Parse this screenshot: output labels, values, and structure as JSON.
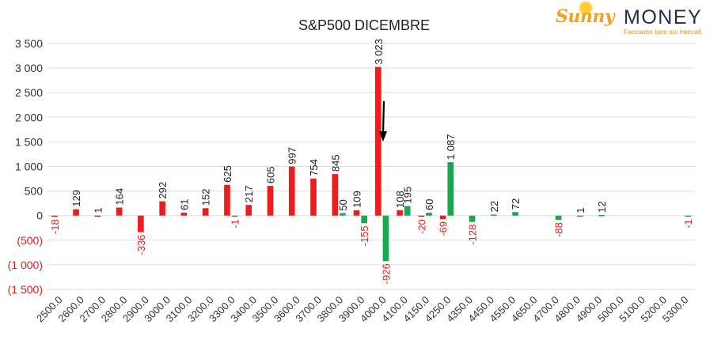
{
  "logo": {
    "brand_sunny": "Sunny",
    "brand_money": "MONEY",
    "tagline": "Facciamo luce sui mercati"
  },
  "colors": {
    "positive": "#ee1c1c",
    "negative": "#1aa84f",
    "neg_label": "#e02020",
    "grid": "#dedede",
    "arrow": "#000000"
  },
  "chart_data": {
    "type": "bar",
    "title": "S&P500 DICEMBRE",
    "xlabel": "",
    "ylabel": "",
    "ylim": [
      -1500,
      3500
    ],
    "yticks": [
      {
        "value": 3500,
        "label": "3 500"
      },
      {
        "value": 3000,
        "label": "3 000"
      },
      {
        "value": 2500,
        "label": "2 500"
      },
      {
        "value": 2000,
        "label": "2 000"
      },
      {
        "value": 1500,
        "label": "1 500"
      },
      {
        "value": 1000,
        "label": "1 000"
      },
      {
        "value": 500,
        "label": "500"
      },
      {
        "value": 0,
        "label": "0"
      },
      {
        "value": -500,
        "label": "(500)"
      },
      {
        "value": -1000,
        "label": "(1 000)"
      },
      {
        "value": -1500,
        "label": "(1 500)"
      }
    ],
    "xticks": [
      "2500.0",
      "2600.0",
      "2700.0",
      "2800.0",
      "2900.0",
      "3000.0",
      "3100.0",
      "3200.0",
      "3300.0",
      "3400.0",
      "3500.0",
      "3600.0",
      "3700.0",
      "3800.0",
      "3900.0",
      "4000.0",
      "4100.0",
      "4150.0",
      "4250.0",
      "4350.0",
      "4450.0",
      "4550.0",
      "4650.0",
      "4700.0",
      "4800.0",
      "4900.0",
      "5000.0",
      "5100.0",
      "5200.0",
      "5300.0"
    ],
    "grid": true,
    "legend": "none",
    "series": [
      {
        "bars": [
          {
            "x": 2500,
            "value": -18,
            "label": "-18"
          },
          {
            "x": 2600,
            "value": 129,
            "label": "129"
          },
          {
            "x": 2700,
            "value": 1,
            "label": "1"
          },
          {
            "x": 2800,
            "value": 164,
            "label": "164"
          },
          {
            "x": 2900,
            "value": -336,
            "label": "-336"
          },
          {
            "x": 3000,
            "value": 292,
            "label": "292"
          },
          {
            "x": 3100,
            "value": 61,
            "label": "61"
          },
          {
            "x": 3200,
            "value": 152,
            "label": "152"
          },
          {
            "x": 3300,
            "value": 625,
            "label": "625"
          },
          {
            "x": 3400,
            "value": 217,
            "label": "217"
          },
          {
            "x": 3500,
            "value": 605,
            "label": "605"
          },
          {
            "x": 3600,
            "value": 997,
            "label": "997"
          },
          {
            "x": 3700,
            "value": 754,
            "label": "754"
          },
          {
            "x": 3800,
            "value": 845,
            "label": "845"
          },
          {
            "x": 3900,
            "value": 109,
            "label": "109"
          },
          {
            "x": 4000,
            "value": 3023,
            "label": "3 023"
          },
          {
            "x": 4100,
            "value": 108,
            "label": "108"
          },
          {
            "x": 4150,
            "value": -20,
            "label": "-20"
          },
          {
            "x": 4250,
            "value": -69,
            "label": "-69"
          }
        ]
      },
      {
        "bars": [
          {
            "x": 3300,
            "value": -1,
            "label": "-1"
          },
          {
            "x": 3800,
            "value": 50,
            "label": "50"
          },
          {
            "x": 3900,
            "value": -155,
            "label": "-155"
          },
          {
            "x": 4000,
            "value": -926,
            "label": "-926"
          },
          {
            "x": 4100,
            "value": 195,
            "label": "195"
          },
          {
            "x": 4150,
            "value": 60,
            "label": "60"
          },
          {
            "x": 4250,
            "value": 1087,
            "label": "1 087"
          },
          {
            "x": 4350,
            "value": -128,
            "label": "-128"
          },
          {
            "x": 4450,
            "value": 22,
            "label": "22"
          },
          {
            "x": 4550,
            "value": 72,
            "label": "72"
          },
          {
            "x": 4700,
            "value": -88,
            "label": "-88"
          },
          {
            "x": 4800,
            "value": 1,
            "label": "1"
          },
          {
            "x": 4900,
            "value": 12,
            "label": "12"
          },
          {
            "x": 5300,
            "value": -1,
            "label": "-1"
          }
        ]
      }
    ]
  }
}
